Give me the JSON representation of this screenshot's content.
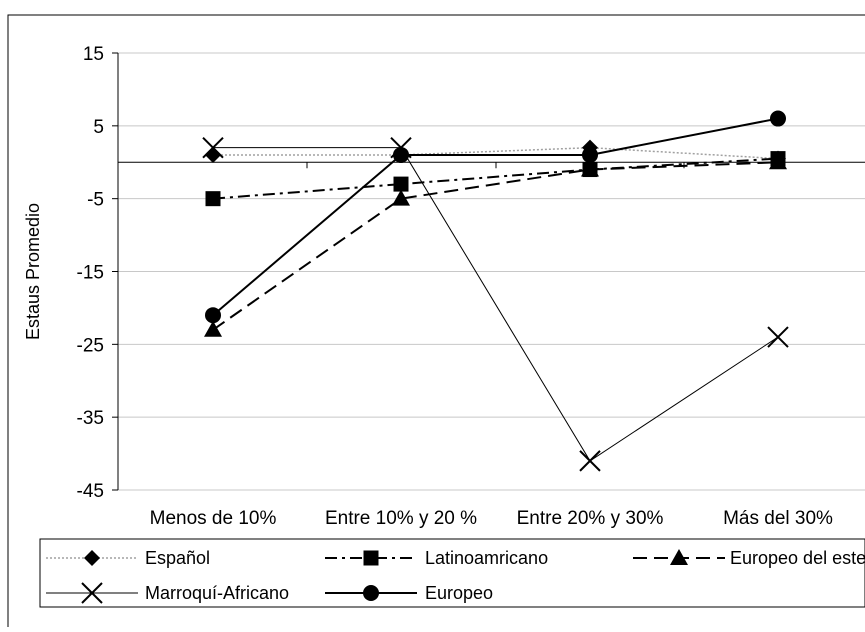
{
  "chart_data": {
    "type": "line",
    "title": "",
    "xlabel": "",
    "ylabel": "Estaus Promedio",
    "categories": [
      "Menos de 10%",
      "Entre 10% y 20 %",
      "Entre 20% y 30%",
      "Más del 30%"
    ],
    "ylim": [
      -45,
      15
    ],
    "yticks": [
      15,
      5,
      -5,
      -15,
      -25,
      -35,
      -45
    ],
    "grid": true,
    "legend_position": "bottom",
    "series": [
      {
        "name": "Español",
        "values": [
          1,
          1,
          2,
          0.5
        ],
        "marker": "diamond",
        "line": "dotted-thin",
        "color": "#9a9a9a"
      },
      {
        "name": "Latinoamricano",
        "values": [
          -5,
          -3,
          -1,
          0.5
        ],
        "marker": "square",
        "line": "dash-dot",
        "color": "#000000"
      },
      {
        "name": "Europeo del este",
        "values": [
          -23,
          -5,
          -1,
          0
        ],
        "marker": "triangle",
        "line": "dashed",
        "color": "#000000"
      },
      {
        "name": "Marroquí-Africano",
        "values": [
          2,
          2,
          -41,
          -24
        ],
        "marker": "x",
        "line": "thin-solid",
        "color": "#000000"
      },
      {
        "name": "Europeo",
        "values": [
          -21,
          1,
          1,
          6
        ],
        "marker": "circle",
        "line": "solid",
        "color": "#000000"
      }
    ]
  }
}
